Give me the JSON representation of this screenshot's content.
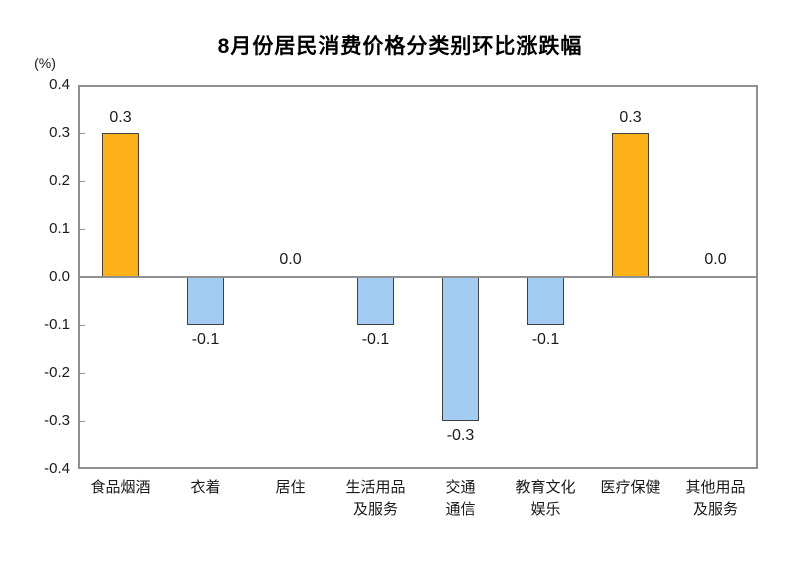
{
  "chart_data": {
    "type": "bar",
    "title": "8月份居民消费价格分类别环比涨跌幅",
    "ylabel": "(%)",
    "categories": [
      "食品烟酒",
      "衣着",
      "居住",
      "生活用品\n及服务",
      "交通\n通信",
      "教育文化\n娱乐",
      "医疗保健",
      "其他用品\n及服务"
    ],
    "values": [
      0.3,
      -0.1,
      0.0,
      -0.1,
      -0.3,
      -0.1,
      0.3,
      0.0
    ],
    "value_labels": [
      "0.3",
      "-0.1",
      "0.0",
      "-0.1",
      "-0.3",
      "-0.1",
      "0.3",
      "0.0"
    ],
    "ylim": [
      -0.4,
      0.4
    ],
    "ytick_step": 0.1,
    "ytick_labels": [
      "0.4",
      "0.3",
      "0.2",
      "0.1",
      "0.0",
      "-0.1",
      "-0.2",
      "-0.3",
      "-0.4"
    ],
    "grid": false,
    "legend": "none",
    "colors": {
      "positive_bar": "#FBB117",
      "negative_bar": "#A2CCF2",
      "bar_border": "#404040",
      "axis": "#909090",
      "text": "#1A1A1A"
    }
  }
}
